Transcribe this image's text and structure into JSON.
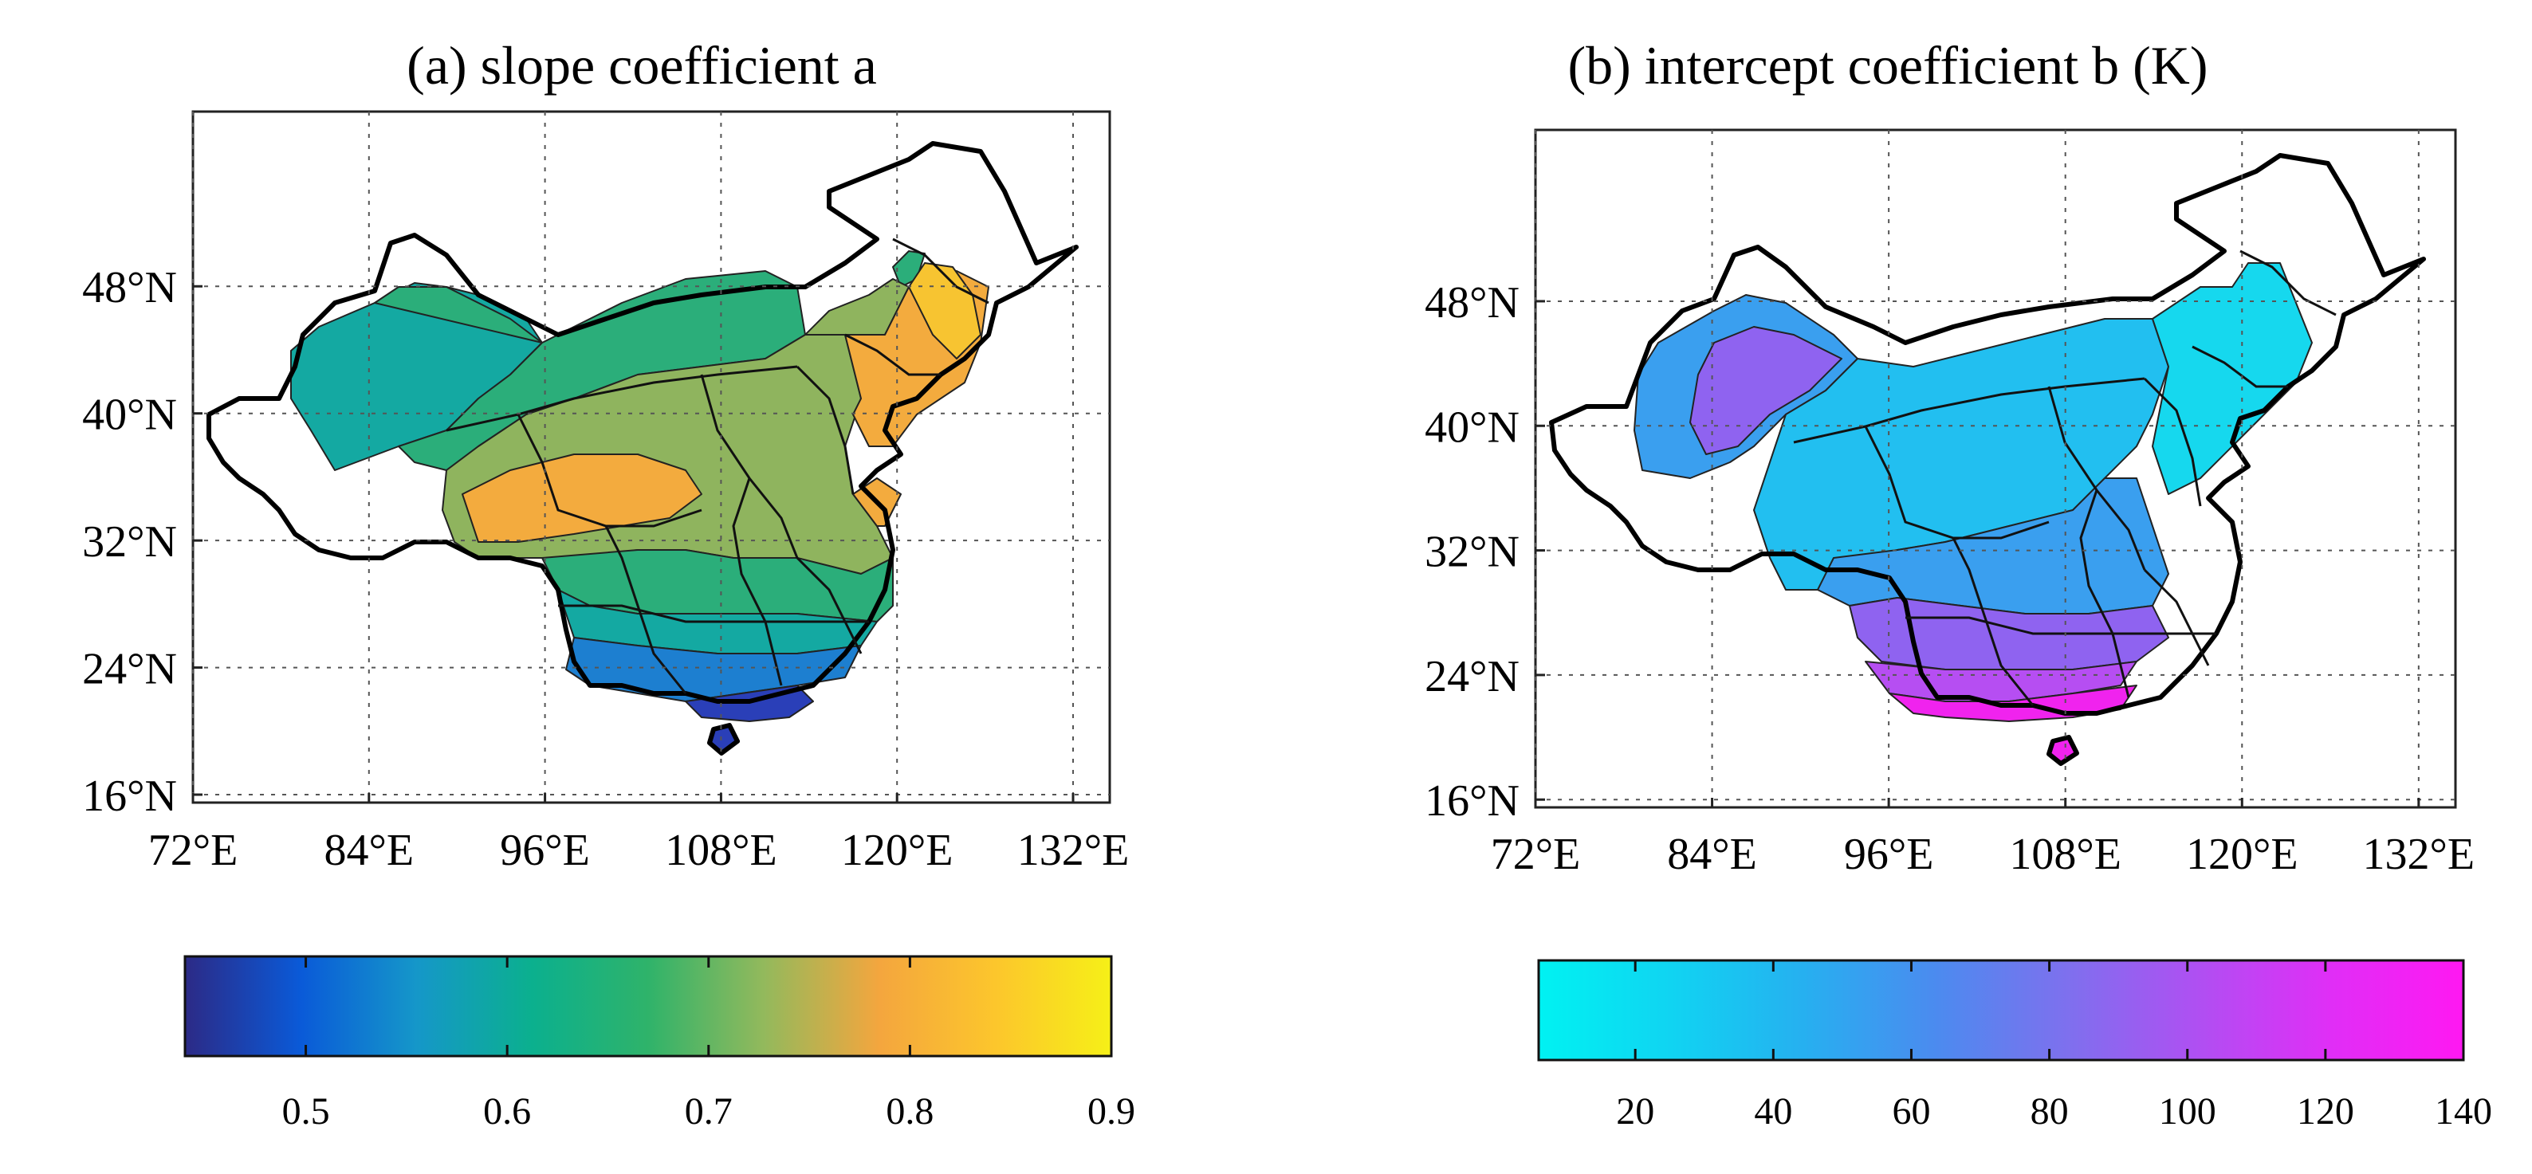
{
  "figure": {
    "panels": [
      {
        "id": "a",
        "title": "(a) slope coefficient a",
        "colorbar": {
          "ticks": [
            "0.5",
            "0.6",
            "0.7",
            "0.8",
            "0.9"
          ],
          "range": [
            0.44,
            0.9
          ],
          "colors": [
            "#2c2a86",
            "#0a5ad8",
            "#1597c9",
            "#0bb08e",
            "#2fb36a",
            "#93b95c",
            "#f4a63e",
            "#fcc62c",
            "#f6f017"
          ]
        },
        "fill_colors": {
          "teal": "#14a9a2",
          "green": "#2bae7a",
          "olive": "#8fb45e",
          "orange": "#f3ab3e",
          "yellow": "#f7c431",
          "blue": "#1d7fd0",
          "navy": "#2a3fb8"
        }
      },
      {
        "id": "b",
        "title": "(b) intercept coefficient b (K)",
        "colorbar": {
          "ticks": [
            "20",
            "40",
            "60",
            "80",
            "100",
            "120",
            "140"
          ],
          "range": [
            6,
            140
          ],
          "colors": [
            "#00f2f2",
            "#10d4f2",
            "#26b0f0",
            "#4b8bef",
            "#7e70ee",
            "#b04ff2",
            "#e02ef6",
            "#ff18f2"
          ]
        },
        "fill_colors": {
          "cyan": "#16d8ee",
          "sky": "#22bff0",
          "blue": "#3a9fef",
          "violet": "#8f63f0",
          "purple": "#b64ef2",
          "magenta": "#f023ee"
        }
      }
    ],
    "map_axes": {
      "x_ticks": [
        "72°E",
        "84°E",
        "96°E",
        "108°E",
        "120°E",
        "132°E"
      ],
      "y_ticks": [
        "48°N",
        "40°N",
        "32°N",
        "24°N",
        "16°N"
      ],
      "lon_values": [
        72,
        84,
        96,
        108,
        120,
        132
      ],
      "lat_values": [
        48,
        40,
        32,
        24,
        16
      ]
    }
  }
}
